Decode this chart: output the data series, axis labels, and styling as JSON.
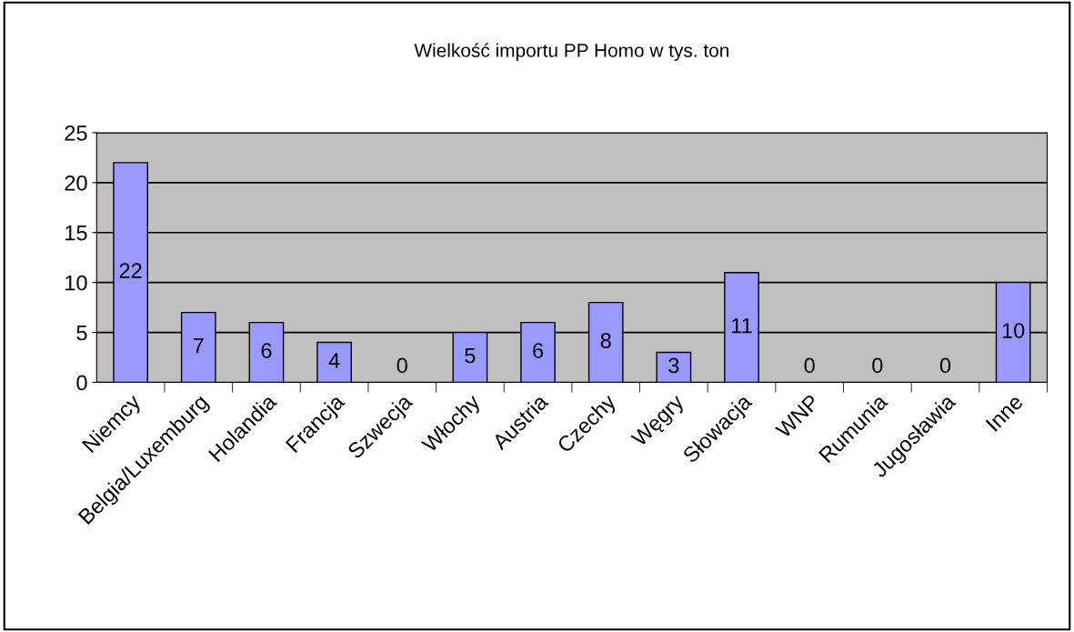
{
  "chart_data": {
    "type": "bar",
    "title": "Wielkość importu PP Homo w tys. ton",
    "categories": [
      "Niemcy",
      "Belgia/Luxemburg",
      "Holandia",
      "Francja",
      "Szwecja",
      "Włochy",
      "Austria",
      "Czechy",
      "Węgry",
      "Słowacja",
      "WNP",
      "Rumunia",
      "Jugosławia",
      "Inne"
    ],
    "values": [
      22,
      7,
      6,
      4,
      0,
      5,
      6,
      8,
      3,
      11,
      0,
      0,
      0,
      10
    ],
    "color": "#9999ff",
    "ylim": [
      0,
      25
    ],
    "yticks": [
      0,
      5,
      10,
      15,
      20,
      25
    ],
    "grid": "y",
    "data_labels": true,
    "legend": false
  }
}
